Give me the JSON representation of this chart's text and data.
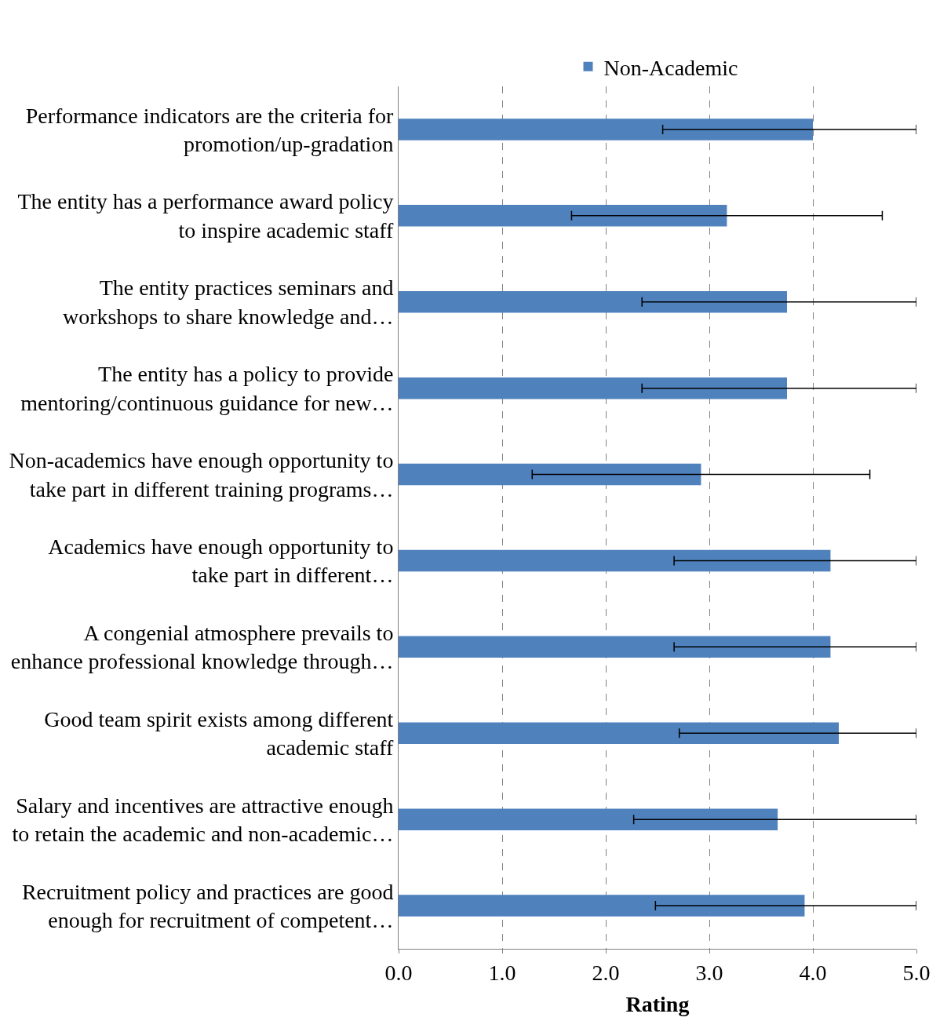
{
  "chart_data": {
    "type": "bar",
    "orientation": "horizontal",
    "xlabel": "Rating",
    "categories": [
      "Performance indicators are the criteria for\npromotion/up-gradation",
      "The entity has a performance award policy\nto inspire academic staff",
      "The entity practices seminars and\nworkshops to share knowledge and…",
      "The entity has a policy to provide\nmentoring/continuous guidance for new…",
      "Non-academics have enough opportunity to\ntake part in different training programs…",
      "Academics have enough opportunity to\ntake part in different…",
      "A congenial atmosphere prevails to\nenhance professional knowledge through…",
      "Good team spirit exists among different\nacademic staff",
      "Salary and incentives are attractive enough\nto retain the academic and non-academic…",
      "Recruitment policy and practices are good\nenough for recruitment of competent…"
    ],
    "series": [
      {
        "name": "Non-Academic",
        "color": "#4f81bd",
        "values": [
          4.0,
          3.17,
          3.75,
          3.75,
          2.92,
          4.17,
          4.17,
          4.25,
          3.66,
          3.92
        ],
        "errors": [
          [
            2.55,
            5.0
          ],
          1.5,
          [
            2.35,
            5.0
          ],
          [
            2.35,
            5.0
          ],
          1.63,
          [
            2.66,
            5.0
          ],
          [
            2.66,
            5.0
          ],
          [
            2.71,
            5.0
          ],
          [
            2.27,
            5.0
          ],
          [
            2.48,
            5.0
          ]
        ]
      }
    ],
    "xlim": [
      0,
      5
    ],
    "xticks": [
      {
        "value": 0,
        "label": "0.0"
      },
      {
        "value": 1,
        "label": "1.0"
      },
      {
        "value": 2,
        "label": "2.0"
      },
      {
        "value": 3,
        "label": "3.0"
      },
      {
        "value": 4,
        "label": "4.0"
      },
      {
        "value": 5,
        "label": "5.0"
      }
    ],
    "grid": "x",
    "legend": "top"
  }
}
